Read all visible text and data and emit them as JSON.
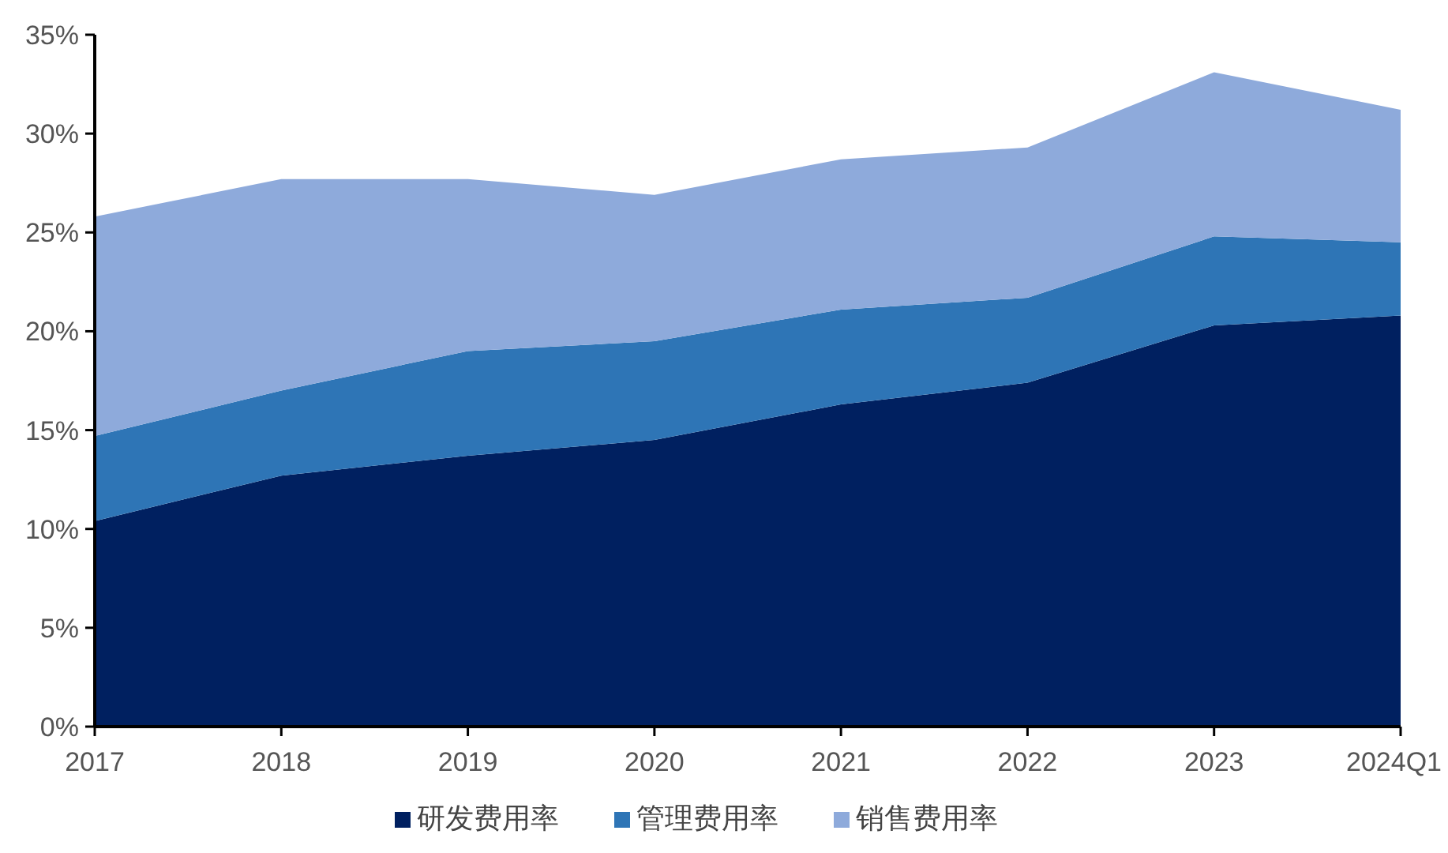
{
  "chart_data": {
    "type": "area",
    "stacked": true,
    "categories": [
      "2017",
      "2018",
      "2019",
      "2020",
      "2021",
      "2022",
      "2023",
      "2024Q1"
    ],
    "series": [
      {
        "name": "研发费用率",
        "color": "#002060",
        "values": [
          10.4,
          12.7,
          13.7,
          14.5,
          16.3,
          17.4,
          20.3,
          20.8
        ]
      },
      {
        "name": "管理费用率",
        "color": "#2e75b6",
        "values": [
          4.3,
          4.3,
          5.3,
          5.0,
          4.8,
          4.3,
          4.5,
          3.7
        ]
      },
      {
        "name": "销售费用率",
        "color": "#8eaadb",
        "values": [
          11.1,
          10.7,
          8.7,
          7.4,
          7.6,
          7.6,
          8.3,
          6.7
        ]
      }
    ],
    "ylim": [
      0,
      35
    ],
    "yticks": [
      {
        "value": 0,
        "label": "0%"
      },
      {
        "value": 5,
        "label": "5%"
      },
      {
        "value": 10,
        "label": "10%"
      },
      {
        "value": 15,
        "label": "15%"
      },
      {
        "value": 20,
        "label": "20%"
      },
      {
        "value": 25,
        "label": "25%"
      },
      {
        "value": 30,
        "label": "30%"
      },
      {
        "value": 35,
        "label": "35%"
      }
    ],
    "grid": false,
    "legend": "bottom"
  }
}
